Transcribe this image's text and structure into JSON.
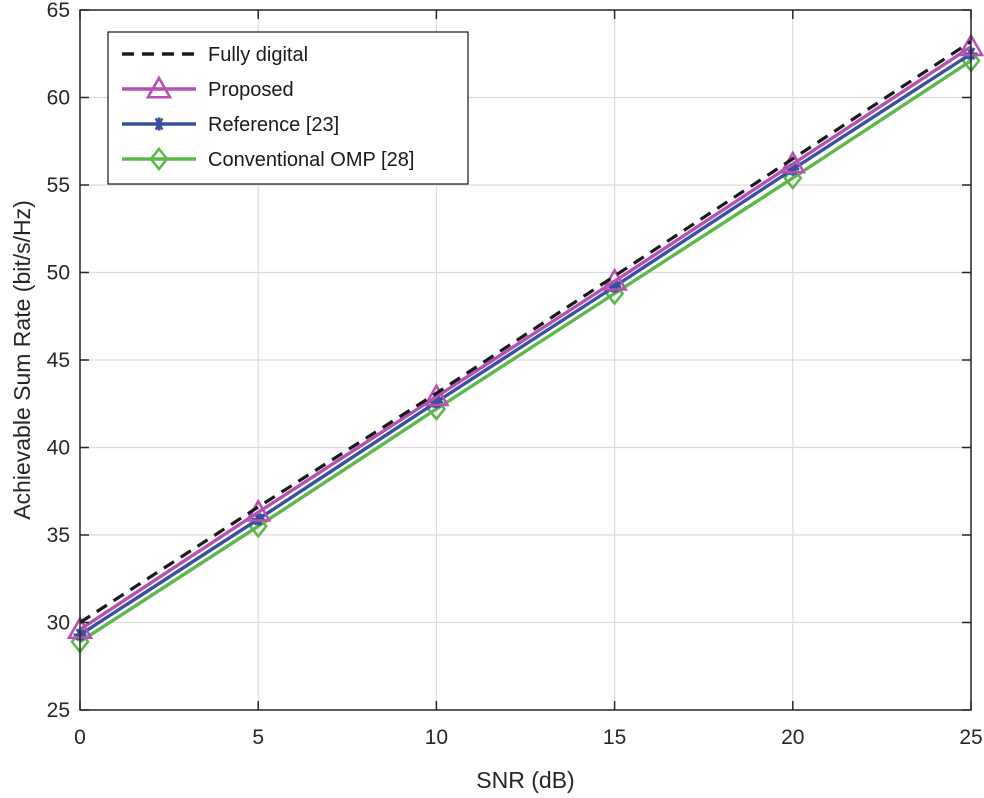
{
  "chart_data": {
    "type": "line",
    "title": "",
    "xlabel": "SNR (dB)",
    "ylabel": "Achievable Sum Rate (bit/s/Hz)",
    "xlim": [
      0,
      25
    ],
    "ylim": [
      25,
      65
    ],
    "xticks": [
      0,
      5,
      10,
      15,
      20,
      25
    ],
    "yticks": [
      25,
      30,
      35,
      40,
      45,
      50,
      55,
      60,
      65
    ],
    "grid": true,
    "legend_position": "top-left",
    "x": [
      0,
      5,
      10,
      15,
      20,
      25
    ],
    "series": [
      {
        "name": "Fully digital",
        "values": [
          30.0,
          36.6,
          43.1,
          49.8,
          56.5,
          63.2
        ],
        "color": "#1a1a1a",
        "dash": "dashed",
        "marker": "none"
      },
      {
        "name": "Proposed",
        "values": [
          29.6,
          36.3,
          42.9,
          49.5,
          56.2,
          62.9
        ],
        "color": "#b352b3",
        "dash": "solid",
        "marker": "triangle"
      },
      {
        "name": "Reference [23]",
        "values": [
          29.3,
          35.9,
          42.6,
          49.2,
          55.9,
          62.5
        ],
        "color": "#3a4fa0",
        "dash": "solid",
        "marker": "asterisk"
      },
      {
        "name": "Conventional OMP [28]",
        "values": [
          28.9,
          35.5,
          42.2,
          48.8,
          55.4,
          62.1
        ],
        "color": "#5db84a",
        "dash": "solid",
        "marker": "diamond"
      }
    ]
  }
}
